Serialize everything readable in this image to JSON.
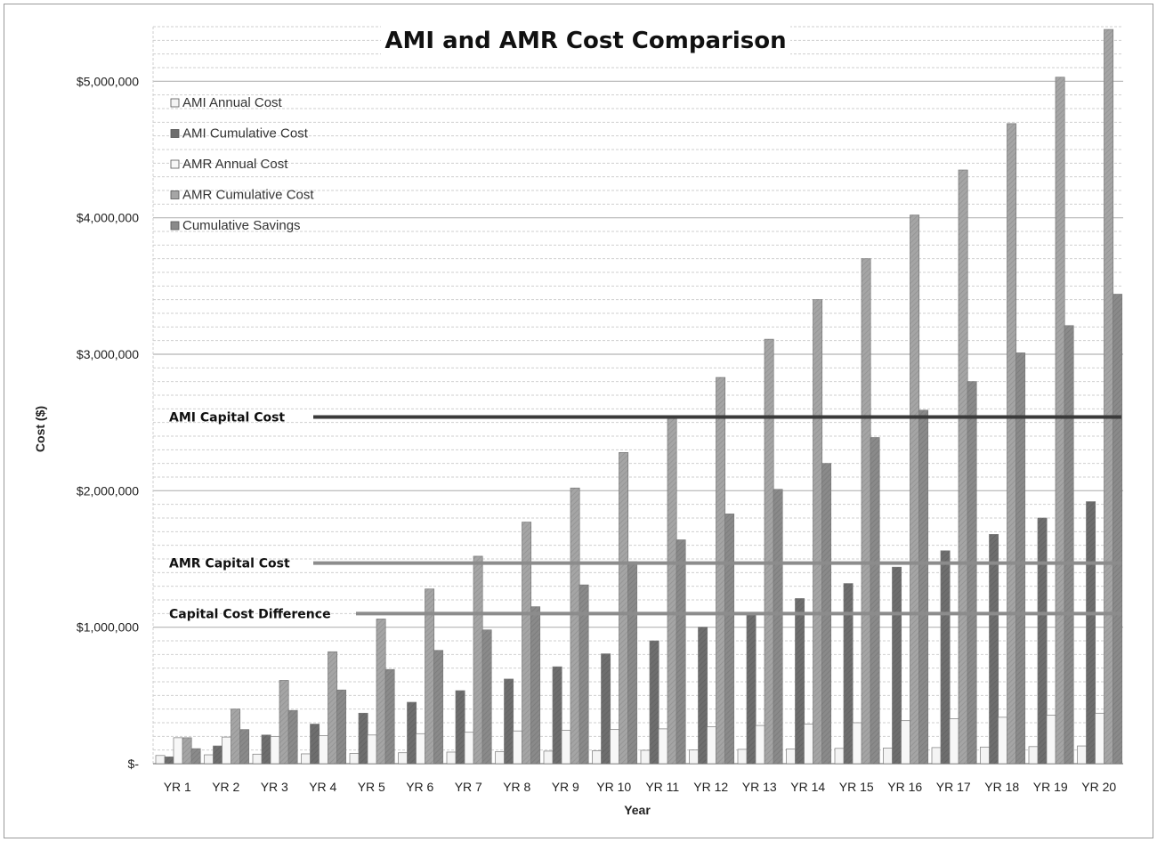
{
  "chart_data": {
    "type": "bar",
    "title": "AMI and AMR Cost Comparison",
    "xlabel": "Year",
    "ylabel": "Cost ($)",
    "ylim": [
      0,
      5400000
    ],
    "y_ticks": [
      {
        "value": 0,
        "label": "$-"
      },
      {
        "value": 1000000,
        "label": "$1,000,000"
      },
      {
        "value": 2000000,
        "label": "$2,000,000"
      },
      {
        "value": 3000000,
        "label": "$3,000,000"
      },
      {
        "value": 4000000,
        "label": "$4,000,000"
      },
      {
        "value": 5000000,
        "label": "$5,000,000"
      }
    ],
    "grid": true,
    "legend_position": "top-left",
    "categories": [
      "YR 1",
      "YR 2",
      "YR 3",
      "YR 4",
      "YR 5",
      "YR 6",
      "YR 7",
      "YR 8",
      "YR 9",
      "YR 10",
      "YR 11",
      "YR 12",
      "YR 13",
      "YR 14",
      "YR 15",
      "YR 16",
      "YR 17",
      "YR 18",
      "YR 19",
      "YR 20"
    ],
    "series": [
      {
        "name": "AMI Annual Cost",
        "color": "#f4f4f4",
        "values": [
          60000,
          65000,
          70000,
          72000,
          75000,
          80000,
          85000,
          88000,
          92000,
          95000,
          98000,
          100000,
          105000,
          108000,
          112000,
          115000,
          118000,
          122000,
          125000,
          130000
        ]
      },
      {
        "name": "AMI Cumulative Cost",
        "color": "#6e6e6e",
        "values": [
          50000,
          130000,
          210000,
          290000,
          370000,
          450000,
          535000,
          620000,
          710000,
          805000,
          900000,
          1000000,
          1100000,
          1210000,
          1320000,
          1440000,
          1560000,
          1680000,
          1800000,
          1920000
        ]
      },
      {
        "name": "AMR Annual Cost",
        "color": "#f7f7f7",
        "values": [
          190000,
          195000,
          200000,
          205000,
          210000,
          220000,
          230000,
          240000,
          245000,
          250000,
          255000,
          270000,
          280000,
          290000,
          300000,
          315000,
          330000,
          340000,
          355000,
          370000
        ]
      },
      {
        "name": "AMR Cumulative Cost",
        "color": "#a5a5a5",
        "values": [
          190000,
          400000,
          610000,
          820000,
          1060000,
          1280000,
          1520000,
          1770000,
          2020000,
          2280000,
          2540000,
          2830000,
          3110000,
          3400000,
          3700000,
          4020000,
          4350000,
          4690000,
          5030000,
          5380000
        ]
      },
      {
        "name": "Cumulative Savings",
        "color": "#8a8a8a",
        "values": [
          110000,
          250000,
          390000,
          540000,
          690000,
          830000,
          980000,
          1150000,
          1310000,
          1480000,
          1640000,
          1830000,
          2010000,
          2200000,
          2390000,
          2590000,
          2800000,
          3010000,
          3210000,
          3440000
        ]
      }
    ],
    "reference_lines": [
      {
        "label": "AMI Capital Cost",
        "value": 2540000,
        "color": "#3a3a3a"
      },
      {
        "label": "AMR Capital Cost",
        "value": 1470000,
        "color": "#8c8c8c"
      },
      {
        "label": "Capital Cost Difference",
        "value": 1100000,
        "color": "#8c8c8c"
      }
    ]
  }
}
